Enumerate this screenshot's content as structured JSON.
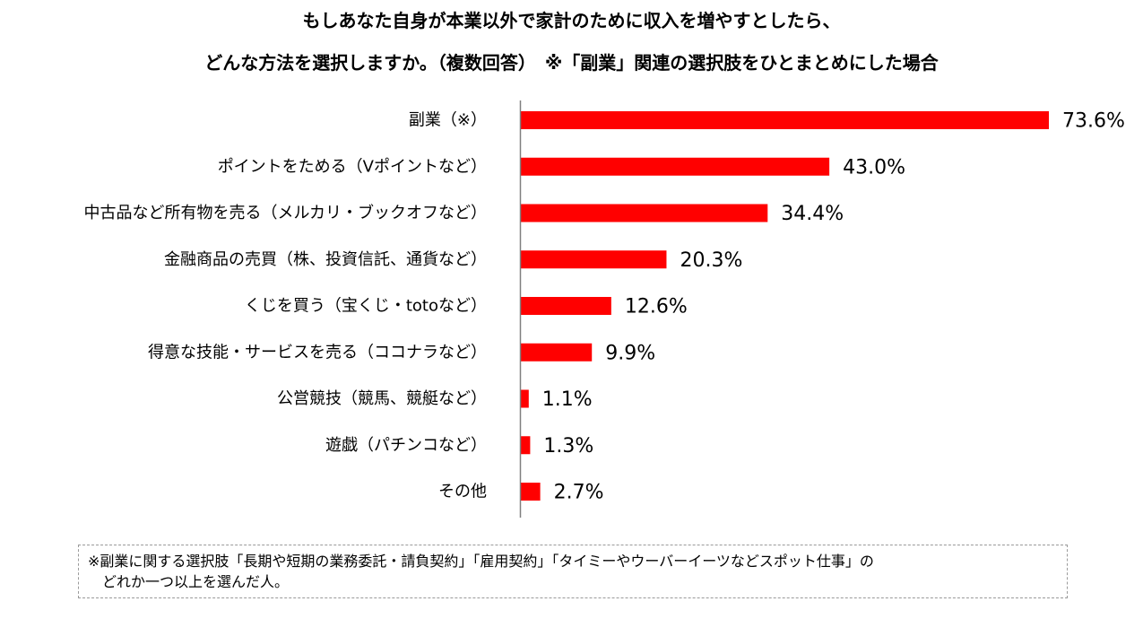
{
  "chart_data": {
    "type": "bar",
    "orientation": "horizontal",
    "title": [
      "もしあなた自身が本業以外で家計のために収入を増やすとしたら、",
      "どんな方法を選択しますか。（複数回答）　※「副業」関連の選択肢をひとまとめにした場合"
    ],
    "categories": [
      "副業（※）",
      "ポイントをためる（Vポイントなど）",
      "中古品など所有物を売る（メルカリ・ブックオフなど）",
      "金融商品の売買（株、投資信託、通貨など）",
      "くじを買う（宝くじ・totoなど）",
      "得意な技能・サービスを売る（ココナラなど）",
      "公営競技（競馬、競艇など）",
      "遊戯（パチンコなど）",
      "その他"
    ],
    "values": [
      73.6,
      43.0,
      34.4,
      20.3,
      12.6,
      9.9,
      1.1,
      1.3,
      2.7
    ],
    "value_labels": [
      "73.6%",
      "43.0%",
      "34.4%",
      "20.3%",
      "12.6%",
      "9.9%",
      "1.1%",
      "1.3%",
      "2.7%"
    ],
    "unit": "%",
    "xlim": [
      0,
      100
    ],
    "bar_color": "#ff0000",
    "grid": false,
    "legend": "none"
  },
  "footnote": {
    "line1": "※副業に関する選択肢「長期や短期の業務委託・請負契約」「雇用契約」「タイミーやウーバーイーツなどスポット仕事」の",
    "line2": "どれか一つ以上を選んだ人。"
  }
}
